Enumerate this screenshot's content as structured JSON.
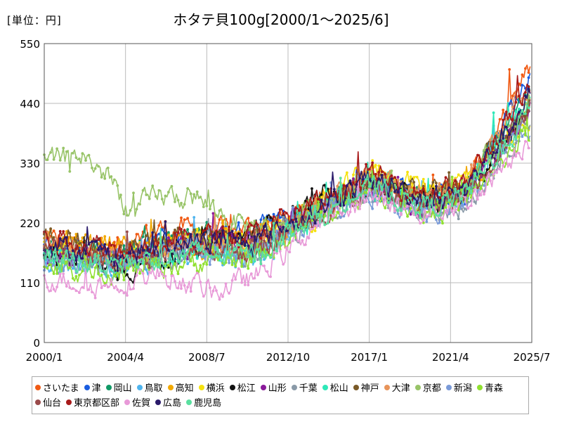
{
  "header": {
    "unit_label": "[単位：円]",
    "title": "ホタテ貝100g[2000/1～2025/6]"
  },
  "chart_data": {
    "type": "line",
    "title": "ホタテ貝100g[2000/1～2025/6]",
    "unit": "[単位：円]",
    "xlabel": "",
    "ylabel": "",
    "xlim": [
      2000.0,
      2025.5
    ],
    "ylim": [
      0,
      550
    ],
    "y_ticks": [
      0,
      110,
      220,
      330,
      440,
      550
    ],
    "x_ticks": [
      {
        "label": "2000/1",
        "value": 2000.0
      },
      {
        "label": "2004/4",
        "value": 2004.25
      },
      {
        "label": "2008/7",
        "value": 2008.5
      },
      {
        "label": "2012/10",
        "value": 2012.75
      },
      {
        "label": "2017/1",
        "value": 2017.0
      },
      {
        "label": "2021/4",
        "value": 2021.25
      },
      {
        "label": "2025/7",
        "value": 2025.5
      }
    ],
    "grid": true,
    "legend_position": "bottom",
    "series": [
      {
        "name": "さいたま",
        "color": "#f05a14",
        "trend": [
          [
            2000,
            195
          ],
          [
            2003,
            165
          ],
          [
            2006,
            210
          ],
          [
            2010,
            205
          ],
          [
            2013,
            230
          ],
          [
            2017,
            300
          ],
          [
            2020,
            270
          ],
          [
            2022,
            280
          ],
          [
            2025.5,
            510
          ]
        ]
      },
      {
        "name": "津",
        "color": "#1a5de0",
        "trend": [
          [
            2000,
            180
          ],
          [
            2003,
            160
          ],
          [
            2006,
            195
          ],
          [
            2010,
            200
          ],
          [
            2013,
            225
          ],
          [
            2017,
            295
          ],
          [
            2020,
            265
          ],
          [
            2022,
            275
          ],
          [
            2025.5,
            500
          ]
        ]
      },
      {
        "name": "岡山",
        "color": "#119966",
        "trend": [
          [
            2000,
            175
          ],
          [
            2004,
            160
          ],
          [
            2008,
            200
          ],
          [
            2011,
            175
          ],
          [
            2014,
            240
          ],
          [
            2017,
            300
          ],
          [
            2020,
            265
          ],
          [
            2022,
            280
          ],
          [
            2025.5,
            470
          ]
        ]
      },
      {
        "name": "鳥取",
        "color": "#4fb4ee",
        "trend": [
          [
            2000,
            150
          ],
          [
            2004,
            140
          ],
          [
            2008,
            165
          ],
          [
            2011,
            150
          ],
          [
            2014,
            235
          ],
          [
            2017,
            290
          ],
          [
            2020,
            255
          ],
          [
            2022,
            270
          ],
          [
            2025.5,
            430
          ]
        ]
      },
      {
        "name": "高知",
        "color": "#f2a900",
        "trend": [
          [
            2000,
            190
          ],
          [
            2004,
            175
          ],
          [
            2008,
            175
          ],
          [
            2011,
            185
          ],
          [
            2014,
            245
          ],
          [
            2017,
            305
          ],
          [
            2020,
            270
          ],
          [
            2022,
            285
          ],
          [
            2025.5,
            440
          ]
        ]
      },
      {
        "name": "横浜",
        "color": "#f5e20f",
        "trend": [
          [
            2000,
            170
          ],
          [
            2004,
            150
          ],
          [
            2008,
            185
          ],
          [
            2011,
            185
          ],
          [
            2014,
            230
          ],
          [
            2017,
            320
          ],
          [
            2020,
            285
          ],
          [
            2022,
            300
          ],
          [
            2025.5,
            420
          ]
        ]
      },
      {
        "name": "松江",
        "color": "#111111",
        "trend": [
          [
            2000,
            160
          ],
          [
            2004,
            135
          ],
          [
            2008,
            170
          ],
          [
            2011,
            200
          ],
          [
            2014,
            255
          ],
          [
            2017,
            290
          ],
          [
            2020,
            255
          ],
          [
            2022,
            270
          ],
          [
            2025.5,
            430
          ]
        ]
      },
      {
        "name": "山形",
        "color": "#8a1a9a",
        "trend": [
          [
            2000,
            165
          ],
          [
            2004,
            150
          ],
          [
            2008,
            180
          ],
          [
            2011,
            195
          ],
          [
            2014,
            240
          ],
          [
            2017,
            285
          ],
          [
            2020,
            245
          ],
          [
            2022,
            265
          ],
          [
            2025.5,
            440
          ]
        ]
      },
      {
        "name": "千葉",
        "color": "#8a9aa8",
        "trend": [
          [
            2000,
            155
          ],
          [
            2004,
            145
          ],
          [
            2008,
            170
          ],
          [
            2011,
            160
          ],
          [
            2014,
            230
          ],
          [
            2017,
            280
          ],
          [
            2020,
            240
          ],
          [
            2022,
            250
          ],
          [
            2025.5,
            420
          ]
        ]
      },
      {
        "name": "松山",
        "color": "#2ee8b8",
        "trend": [
          [
            2000,
            160
          ],
          [
            2004,
            150
          ],
          [
            2008,
            165
          ],
          [
            2011,
            165
          ],
          [
            2014,
            240
          ],
          [
            2017,
            290
          ],
          [
            2020,
            260
          ],
          [
            2022,
            280
          ],
          [
            2025.5,
            460
          ]
        ]
      },
      {
        "name": "神戸",
        "color": "#7a5a28",
        "trend": [
          [
            2000,
            200
          ],
          [
            2004,
            170
          ],
          [
            2008,
            190
          ],
          [
            2011,
            190
          ],
          [
            2014,
            240
          ],
          [
            2017,
            300
          ],
          [
            2020,
            270
          ],
          [
            2022,
            285
          ],
          [
            2025.5,
            450
          ]
        ]
      },
      {
        "name": "大津",
        "color": "#e8945a",
        "trend": [
          [
            2000,
            185
          ],
          [
            2004,
            160
          ],
          [
            2008,
            180
          ],
          [
            2011,
            180
          ],
          [
            2014,
            245
          ],
          [
            2017,
            310
          ],
          [
            2020,
            270
          ],
          [
            2022,
            290
          ],
          [
            2025.5,
            480
          ]
        ]
      },
      {
        "name": "京都",
        "color": "#98c468",
        "trend": [
          [
            2000,
            330
          ],
          [
            2002,
            345
          ],
          [
            2003.5,
            300
          ],
          [
            2004.5,
            240
          ],
          [
            2006,
            270
          ],
          [
            2008,
            265
          ],
          [
            2010,
            220
          ],
          [
            2012,
            210
          ],
          [
            2014,
            245
          ],
          [
            2017,
            300
          ],
          [
            2020,
            265
          ],
          [
            2022,
            285
          ],
          [
            2025.5,
            450
          ]
        ]
      },
      {
        "name": "新潟",
        "color": "#7a9ad8",
        "trend": [
          [
            2000,
            150
          ],
          [
            2004,
            145
          ],
          [
            2008,
            170
          ],
          [
            2011,
            165
          ],
          [
            2014,
            230
          ],
          [
            2017,
            280
          ],
          [
            2020,
            235
          ],
          [
            2022,
            260
          ],
          [
            2025.5,
            410
          ]
        ]
      },
      {
        "name": "青森",
        "color": "#90e030",
        "trend": [
          [
            2000,
            140
          ],
          [
            2004,
            130
          ],
          [
            2008,
            150
          ],
          [
            2011,
            155
          ],
          [
            2014,
            220
          ],
          [
            2017,
            275
          ],
          [
            2020,
            240
          ],
          [
            2022,
            255
          ],
          [
            2025.5,
            400
          ]
        ]
      },
      {
        "name": "仙台",
        "color": "#9a4a4a",
        "trend": [
          [
            2000,
            170
          ],
          [
            2004,
            155
          ],
          [
            2008,
            175
          ],
          [
            2011,
            170
          ],
          [
            2014,
            230
          ],
          [
            2017,
            285
          ],
          [
            2020,
            250
          ],
          [
            2022,
            270
          ],
          [
            2025.5,
            440
          ]
        ]
      },
      {
        "name": "東京都区部",
        "color": "#a81a1a",
        "trend": [
          [
            2000,
            195
          ],
          [
            2004,
            175
          ],
          [
            2008,
            195
          ],
          [
            2011,
            200
          ],
          [
            2014,
            250
          ],
          [
            2017,
            310
          ],
          [
            2020,
            275
          ],
          [
            2022,
            290
          ],
          [
            2025.5,
            470
          ]
        ]
      },
      {
        "name": "佐賀",
        "color": "#e89ad8",
        "trend": [
          [
            2000,
            120
          ],
          [
            2003,
            105
          ],
          [
            2006,
            125
          ],
          [
            2009,
            95
          ],
          [
            2011,
            120
          ],
          [
            2014,
            210
          ],
          [
            2017,
            265
          ],
          [
            2020,
            240
          ],
          [
            2022,
            255
          ],
          [
            2025.5,
            380
          ]
        ]
      },
      {
        "name": "広島",
        "color": "#2a1a6a",
        "trend": [
          [
            2000,
            180
          ],
          [
            2004,
            160
          ],
          [
            2008,
            185
          ],
          [
            2011,
            185
          ],
          [
            2014,
            240
          ],
          [
            2017,
            300
          ],
          [
            2020,
            265
          ],
          [
            2022,
            280
          ],
          [
            2025.5,
            460
          ]
        ]
      },
      {
        "name": "鹿児島",
        "color": "#5ae0a0",
        "trend": [
          [
            2000,
            155
          ],
          [
            2004,
            145
          ],
          [
            2008,
            165
          ],
          [
            2011,
            160
          ],
          [
            2014,
            225
          ],
          [
            2017,
            285
          ],
          [
            2020,
            250
          ],
          [
            2022,
            270
          ],
          [
            2025.5,
            430
          ]
        ]
      }
    ]
  }
}
